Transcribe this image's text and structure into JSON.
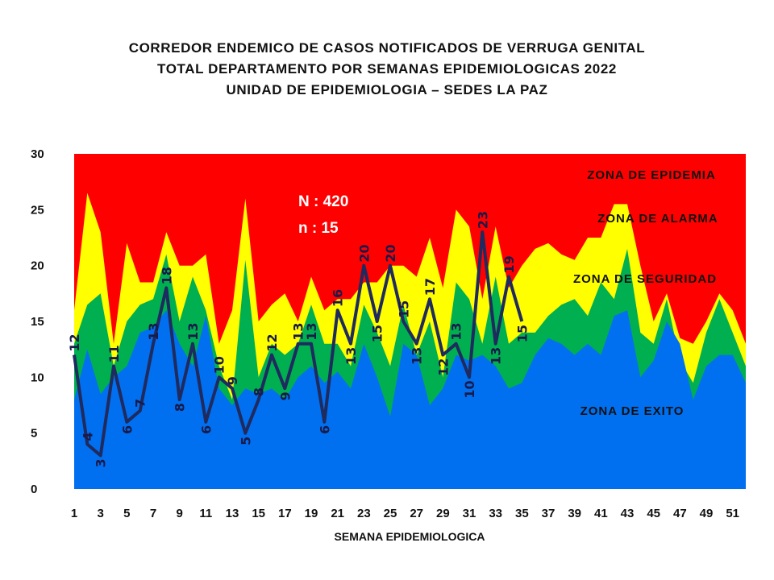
{
  "chart_data": {
    "type": "area",
    "title_lines": [
      "CORREDOR ENDEMICO  DE CASOS NOTIFICADOS  DE VERRUGA  GENITAL",
      "TOTAL DEPARTAMENTO  POR SEMANAS EPIDEMIOLOGICAS  2022",
      "UNIDAD  DE EPIDEMIOLOGIA  – SEDES LA PAZ"
    ],
    "xlabel": "SEMANA EPIDEMIOLOGICA",
    "ylim": [
      0,
      30
    ],
    "yticks": [
      0,
      5,
      10,
      15,
      20,
      25,
      30
    ],
    "x": [
      1,
      2,
      3,
      4,
      5,
      6,
      7,
      8,
      9,
      10,
      11,
      12,
      13,
      14,
      15,
      16,
      17,
      18,
      19,
      20,
      21,
      22,
      23,
      24,
      25,
      26,
      27,
      28,
      29,
      30,
      31,
      32,
      33,
      34,
      35,
      36,
      37,
      38,
      39,
      40,
      41,
      42,
      43,
      44,
      45,
      46,
      47,
      48,
      49,
      50,
      51,
      52
    ],
    "xtick_labels": [
      "1",
      "3",
      "5",
      "7",
      "9",
      "11",
      "13",
      "15",
      "17",
      "19",
      "21",
      "23",
      "25",
      "27",
      "29",
      "31",
      "33",
      "35",
      "37",
      "39",
      "41",
      "43",
      "45",
      "47",
      "49",
      "51"
    ],
    "zones": [
      {
        "name": "ZONA DE EPIDEMIA",
        "color": "#ff0000",
        "upper": 30
      },
      {
        "name": "ZONA DE ALARMA",
        "color": "#ffff00",
        "upper": [
          16,
          26.5,
          23,
          13,
          22,
          18.5,
          18.5,
          23,
          20,
          20,
          21,
          13,
          16,
          26,
          15,
          16.5,
          17.5,
          15,
          19,
          16,
          17,
          17,
          18.5,
          18.5,
          20,
          20,
          19,
          22.5,
          18,
          25,
          23.5,
          17,
          23.5,
          18,
          20,
          21.5,
          22,
          21,
          20.5,
          22.5,
          22.5,
          25.5,
          25.5,
          20,
          15,
          17.5,
          13.5,
          13,
          15,
          17.5,
          16,
          13
        ]
      },
      {
        "name": "ZONA DE  SEGURIDAD",
        "color": "#00b050",
        "upper": [
          13,
          16.5,
          17.5,
          11,
          15,
          16.5,
          17,
          21,
          15,
          19,
          16,
          11,
          8,
          20.5,
          10,
          13,
          12,
          13,
          16.5,
          13,
          13,
          11,
          16.5,
          14,
          11,
          16.5,
          12,
          15,
          10,
          18.5,
          17,
          13,
          19,
          13,
          14,
          14,
          15.5,
          16.5,
          17,
          15.5,
          18.5,
          17,
          21.5,
          14,
          13,
          17,
          11.5,
          9.5,
          14,
          17,
          14,
          11
        ]
      },
      {
        "name": "ZONA DE  EXITO",
        "color": "#0070f0",
        "upper": [
          8,
          12.5,
          8.5,
          10,
          11,
          14,
          14.5,
          16,
          13,
          11,
          15.5,
          9,
          7.5,
          9,
          8.5,
          9,
          8,
          10,
          11,
          9.5,
          10.5,
          9,
          13,
          10,
          6.5,
          13,
          12,
          7.5,
          9,
          12,
          11.5,
          12,
          11,
          9,
          9.5,
          12,
          13.5,
          13,
          12,
          13,
          12,
          15.5,
          16,
          10,
          11.5,
          15,
          13,
          8,
          11,
          12,
          12,
          9.5
        ]
      }
    ],
    "series": [
      {
        "color": "#1f2a5e",
        "x": [
          1,
          2,
          3,
          4,
          5,
          6,
          7,
          8,
          9,
          10,
          11,
          12,
          13,
          14,
          15,
          16,
          17,
          18,
          19,
          20,
          21,
          22,
          23,
          24,
          25,
          26,
          27,
          28,
          29,
          30,
          31,
          32,
          33,
          34,
          35
        ],
        "values": [
          12,
          4,
          3,
          11,
          6,
          7,
          13,
          18,
          8,
          13,
          6,
          10,
          9,
          5,
          8,
          12,
          9,
          13,
          13,
          6,
          16,
          13,
          20,
          15,
          20,
          15,
          13,
          17,
          12,
          13,
          10,
          23,
          13,
          19,
          15
        ]
      }
    ],
    "annotations": [
      "N : 420",
      "n :   15"
    ]
  }
}
